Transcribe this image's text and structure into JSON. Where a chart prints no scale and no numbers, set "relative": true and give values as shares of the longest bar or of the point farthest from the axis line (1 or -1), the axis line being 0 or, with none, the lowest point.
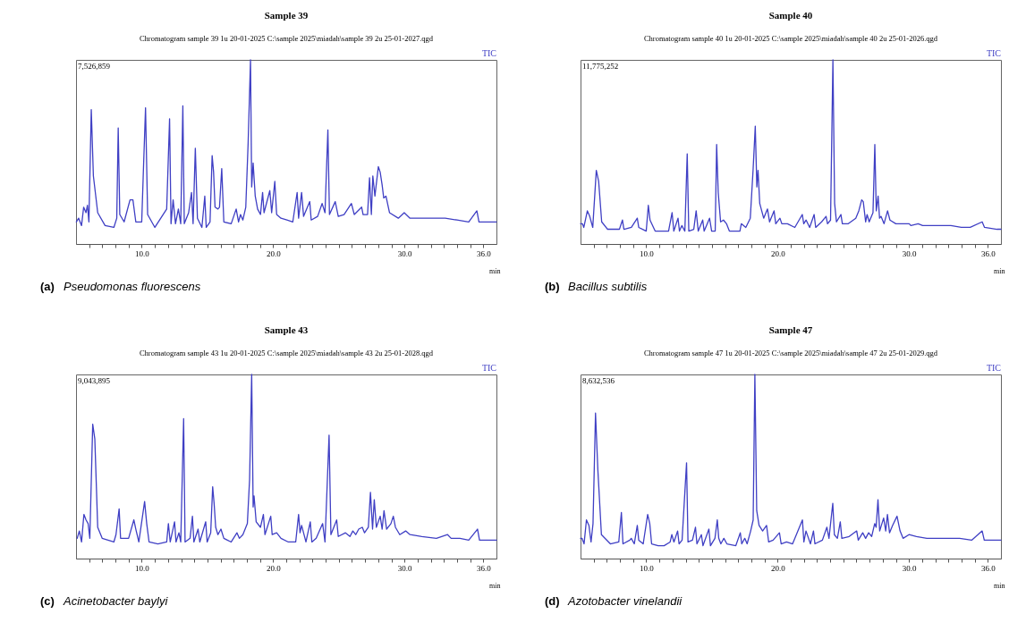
{
  "chart_data": [
    {
      "type": "line",
      "title": "Sample 39",
      "subtitle": "Chromatogram sample 39 1u 20-01-2025 C:\\sample 2025\\miadah\\sample 39 2u 25-01-2027.qgd",
      "xlabel": "min",
      "relative": true,
      "xlim": [
        5,
        37
      ],
      "xticks": [
        {
          "value": 6,
          "label": null
        },
        {
          "value": 7,
          "label": null
        },
        {
          "value": 8,
          "label": null
        },
        {
          "value": 9,
          "label": null
        },
        {
          "value": 10,
          "label": "10.0"
        },
        {
          "value": 11,
          "label": null
        },
        {
          "value": 12,
          "label": null
        },
        {
          "value": 13,
          "label": null
        },
        {
          "value": 14,
          "label": null
        },
        {
          "value": 15,
          "label": null
        },
        {
          "value": 16,
          "label": null
        },
        {
          "value": 17,
          "label": null
        },
        {
          "value": 18,
          "label": null
        },
        {
          "value": 19,
          "label": null
        },
        {
          "value": 20,
          "label": "20.0"
        },
        {
          "value": 21,
          "label": null
        },
        {
          "value": 22,
          "label": null
        },
        {
          "value": 23,
          "label": null
        },
        {
          "value": 24,
          "label": null
        },
        {
          "value": 25,
          "label": null
        },
        {
          "value": 26,
          "label": null
        },
        {
          "value": 27,
          "label": null
        },
        {
          "value": 28,
          "label": null
        },
        {
          "value": 29,
          "label": null
        },
        {
          "value": 30,
          "label": "30.0"
        },
        {
          "value": 31,
          "label": null
        },
        {
          "value": 32,
          "label": null
        },
        {
          "value": 33,
          "label": null
        },
        {
          "value": 34,
          "label": null
        },
        {
          "value": 35,
          "label": null
        },
        {
          "value": 36,
          "label": "36.0"
        }
      ],
      "annotations": [
        "7,526,859",
        "(a) Pseudomonas fluorescens"
      ],
      "series": [
        {
          "name": "TIC",
          "color": "#3f3fc4",
          "x": [
            5.02,
            5.2,
            5.42,
            5.58,
            5.76,
            5.87,
            5.98,
            6.16,
            6.32,
            6.65,
            7.21,
            7.88,
            8.1,
            8.21,
            8.33,
            8.66,
            9.11,
            9.33,
            9.55,
            10.0,
            10.11,
            10.29,
            10.45,
            11.0,
            11.9,
            12.12,
            12.23,
            12.39,
            12.57,
            12.79,
            12.97,
            13.13,
            13.24,
            13.57,
            13.79,
            13.91,
            14.08,
            14.24,
            14.58,
            14.8,
            14.91,
            15.2,
            15.36,
            15.47,
            15.58,
            15.8,
            15.92,
            16.09,
            16.25,
            16.81,
            17.19,
            17.37,
            17.52,
            17.7,
            17.92,
            18.1,
            18.28,
            18.37,
            18.48,
            18.64,
            18.82,
            19.04,
            19.2,
            19.31,
            19.75,
            19.89,
            20.13,
            20.27,
            20.6,
            21.05,
            21.5,
            21.83,
            21.94,
            22.17,
            22.32,
            22.79,
            22.9,
            23.39,
            23.73,
            23.95,
            24.17,
            24.29,
            24.73,
            24.96,
            25.4,
            25.96,
            26.18,
            26.74,
            26.85,
            27.19,
            27.34,
            27.48,
            27.59,
            27.75,
            28.01,
            28.15,
            28.3,
            28.42,
            28.59,
            28.86,
            29.53,
            29.98,
            30.42,
            31.32,
            32.43,
            33.1,
            34.0,
            34.89,
            35.51,
            35.67,
            37.0
          ],
          "values": [
            0.12,
            0.14,
            0.1,
            0.2,
            0.17,
            0.21,
            0.12,
            0.73,
            0.37,
            0.17,
            0.1,
            0.09,
            0.14,
            0.63,
            0.16,
            0.12,
            0.24,
            0.24,
            0.12,
            0.12,
            0.36,
            0.74,
            0.16,
            0.09,
            0.19,
            0.68,
            0.11,
            0.24,
            0.11,
            0.19,
            0.11,
            0.75,
            0.11,
            0.17,
            0.28,
            0.11,
            0.52,
            0.14,
            0.09,
            0.26,
            0.09,
            0.12,
            0.48,
            0.39,
            0.2,
            0.19,
            0.2,
            0.41,
            0.12,
            0.11,
            0.19,
            0.12,
            0.16,
            0.13,
            0.2,
            0.55,
            1.0,
            0.31,
            0.44,
            0.26,
            0.19,
            0.16,
            0.28,
            0.17,
            0.29,
            0.17,
            0.34,
            0.16,
            0.14,
            0.13,
            0.12,
            0.28,
            0.14,
            0.28,
            0.15,
            0.23,
            0.13,
            0.15,
            0.22,
            0.17,
            0.62,
            0.16,
            0.23,
            0.15,
            0.16,
            0.22,
            0.16,
            0.2,
            0.16,
            0.16,
            0.36,
            0.16,
            0.37,
            0.26,
            0.42,
            0.39,
            0.32,
            0.25,
            0.26,
            0.17,
            0.14,
            0.17,
            0.14,
            0.14,
            0.14,
            0.14,
            0.13,
            0.12,
            0.18,
            0.12,
            0.12
          ]
        }
      ]
    },
    {
      "type": "line",
      "title": "Sample 40",
      "subtitle": "Chromatogram sample 40 1u 20-01-2025 C:\\sample 2025\\miadah\\sample 40  2u 25-01-2026.qgd",
      "xlabel": "min",
      "relative": true,
      "xlim": [
        5,
        37
      ],
      "xticks": [
        {
          "value": 6,
          "label": null
        },
        {
          "value": 7,
          "label": null
        },
        {
          "value": 8,
          "label": null
        },
        {
          "value": 9,
          "label": null
        },
        {
          "value": 10,
          "label": "10.0"
        },
        {
          "value": 11,
          "label": null
        },
        {
          "value": 12,
          "label": null
        },
        {
          "value": 13,
          "label": null
        },
        {
          "value": 14,
          "label": null
        },
        {
          "value": 15,
          "label": null
        },
        {
          "value": 16,
          "label": null
        },
        {
          "value": 17,
          "label": null
        },
        {
          "value": 18,
          "label": null
        },
        {
          "value": 19,
          "label": null
        },
        {
          "value": 20,
          "label": "20.0"
        },
        {
          "value": 21,
          "label": null
        },
        {
          "value": 22,
          "label": null
        },
        {
          "value": 23,
          "label": null
        },
        {
          "value": 24,
          "label": null
        },
        {
          "value": 25,
          "label": null
        },
        {
          "value": 26,
          "label": null
        },
        {
          "value": 27,
          "label": null
        },
        {
          "value": 28,
          "label": null
        },
        {
          "value": 29,
          "label": null
        },
        {
          "value": 30,
          "label": "30.0"
        },
        {
          "value": 31,
          "label": null
        },
        {
          "value": 32,
          "label": null
        },
        {
          "value": 33,
          "label": null
        },
        {
          "value": 34,
          "label": null
        },
        {
          "value": 35,
          "label": null
        },
        {
          "value": 36,
          "label": "36.0"
        }
      ],
      "annotations": [
        "11,775,252",
        "(b) Bacillus subtilis"
      ],
      "series": [
        {
          "name": "TIC",
          "color": "#3f3fc4",
          "x": [
            5.0,
            5.14,
            5.25,
            5.52,
            5.7,
            5.93,
            6.2,
            6.38,
            6.61,
            7.06,
            7.96,
            8.19,
            8.3,
            8.87,
            9.32,
            9.43,
            10.0,
            10.16,
            10.29,
            10.68,
            11.36,
            11.7,
            11.97,
            12.1,
            12.42,
            12.53,
            12.71,
            12.94,
            13.12,
            13.24,
            13.62,
            13.8,
            13.96,
            14.3,
            14.41,
            14.82,
            14.98,
            15.25,
            15.36,
            15.48,
            15.66,
            15.88,
            16.11,
            16.33,
            17.13,
            17.24,
            17.58,
            17.92,
            18.14,
            18.3,
            18.42,
            18.51,
            18.64,
            18.94,
            19.23,
            19.39,
            19.73,
            19.86,
            20.18,
            20.32,
            20.75,
            21.31,
            21.88,
            21.99,
            22.17,
            22.44,
            22.78,
            22.9,
            23.35,
            23.69,
            23.8,
            24.03,
            24.21,
            24.34,
            24.48,
            24.82,
            24.93,
            25.38,
            25.95,
            26.18,
            26.4,
            26.52,
            26.7,
            26.81,
            26.97,
            27.26,
            27.4,
            27.51,
            27.65,
            27.76,
            27.87,
            28.1,
            28.37,
            28.55,
            29.0,
            29.46,
            30.02,
            30.14,
            30.7,
            31.04,
            32.06,
            32.62,
            33.19,
            33.98,
            34.66,
            35.57,
            35.75,
            36.7,
            37.0
          ],
          "values": [
            0.11,
            0.11,
            0.09,
            0.18,
            0.15,
            0.09,
            0.4,
            0.34,
            0.12,
            0.08,
            0.08,
            0.13,
            0.08,
            0.09,
            0.14,
            0.09,
            0.07,
            0.21,
            0.13,
            0.07,
            0.07,
            0.07,
            0.17,
            0.07,
            0.14,
            0.07,
            0.1,
            0.07,
            0.49,
            0.07,
            0.08,
            0.18,
            0.07,
            0.13,
            0.07,
            0.14,
            0.07,
            0.07,
            0.54,
            0.28,
            0.12,
            0.13,
            0.11,
            0.07,
            0.07,
            0.11,
            0.09,
            0.14,
            0.41,
            0.64,
            0.31,
            0.4,
            0.22,
            0.14,
            0.19,
            0.12,
            0.18,
            0.11,
            0.14,
            0.11,
            0.11,
            0.09,
            0.16,
            0.11,
            0.13,
            0.09,
            0.16,
            0.09,
            0.12,
            0.15,
            0.11,
            0.13,
            1.0,
            0.22,
            0.12,
            0.16,
            0.11,
            0.11,
            0.14,
            0.18,
            0.24,
            0.23,
            0.12,
            0.16,
            0.12,
            0.17,
            0.54,
            0.18,
            0.26,
            0.14,
            0.15,
            0.11,
            0.18,
            0.13,
            0.11,
            0.11,
            0.11,
            0.1,
            0.11,
            0.1,
            0.1,
            0.1,
            0.1,
            0.09,
            0.09,
            0.12,
            0.09,
            0.08,
            0.08
          ]
        }
      ]
    },
    {
      "type": "line",
      "title": "Sample 43",
      "subtitle": "Chromatogram sample 43 1u 20-01-2025 C:\\sample 2025\\miadah\\sample 43 2u 25-01-2028.qgd",
      "xlabel": "min",
      "relative": true,
      "xlim": [
        5,
        37
      ],
      "xticks": [
        {
          "value": 6,
          "label": null
        },
        {
          "value": 7,
          "label": null
        },
        {
          "value": 8,
          "label": null
        },
        {
          "value": 9,
          "label": null
        },
        {
          "value": 10,
          "label": "10.0"
        },
        {
          "value": 11,
          "label": null
        },
        {
          "value": 12,
          "label": null
        },
        {
          "value": 13,
          "label": null
        },
        {
          "value": 14,
          "label": null
        },
        {
          "value": 15,
          "label": null
        },
        {
          "value": 16,
          "label": null
        },
        {
          "value": 17,
          "label": null
        },
        {
          "value": 18,
          "label": null
        },
        {
          "value": 19,
          "label": null
        },
        {
          "value": 20,
          "label": "20.0"
        },
        {
          "value": 21,
          "label": null
        },
        {
          "value": 22,
          "label": null
        },
        {
          "value": 23,
          "label": null
        },
        {
          "value": 24,
          "label": null
        },
        {
          "value": 25,
          "label": null
        },
        {
          "value": 26,
          "label": null
        },
        {
          "value": 27,
          "label": null
        },
        {
          "value": 28,
          "label": null
        },
        {
          "value": 29,
          "label": null
        },
        {
          "value": 30,
          "label": "30.0"
        },
        {
          "value": 31,
          "label": null
        },
        {
          "value": 32,
          "label": null
        },
        {
          "value": 33,
          "label": null
        },
        {
          "value": 34,
          "label": null
        },
        {
          "value": 35,
          "label": null
        },
        {
          "value": 36,
          "label": "36.0"
        }
      ],
      "annotations": [
        "9,043,895",
        "(c) Acinetobacter baylyi"
      ],
      "series": [
        {
          "name": "TIC",
          "color": "#3f3fc4",
          "x": [
            5.09,
            5.25,
            5.42,
            5.6,
            5.76,
            5.92,
            6.05,
            6.27,
            6.43,
            6.65,
            6.99,
            7.88,
            8.04,
            8.28,
            8.39,
            9.0,
            9.4,
            9.55,
            9.78,
            10.22,
            10.38,
            10.56,
            11.23,
            11.9,
            12.03,
            12.17,
            12.5,
            12.61,
            12.83,
            12.97,
            13.19,
            13.3,
            13.68,
            13.86,
            13.97,
            14.29,
            14.42,
            14.87,
            14.98,
            15.25,
            15.4,
            15.51,
            15.63,
            15.8,
            16.03,
            16.25,
            16.81,
            17.25,
            17.43,
            17.7,
            18.04,
            18.21,
            18.37,
            18.48,
            18.55,
            18.71,
            19.04,
            19.26,
            19.38,
            19.82,
            19.93,
            20.27,
            20.6,
            21.16,
            21.72,
            21.94,
            22.05,
            22.17,
            22.5,
            22.83,
            22.95,
            23.28,
            23.77,
            23.95,
            24.26,
            24.4,
            24.84,
            24.96,
            25.51,
            25.85,
            26.07,
            26.29,
            26.52,
            26.79,
            26.96,
            27.25,
            27.41,
            27.57,
            27.7,
            27.86,
            28.15,
            28.3,
            28.44,
            28.64,
            28.97,
            29.15,
            29.31,
            29.64,
            30.09,
            30.42,
            31.32,
            32.43,
            33.28,
            33.55,
            34.22,
            34.89,
            35.56,
            35.71,
            37.0
          ],
          "values": [
            0.11,
            0.15,
            0.09,
            0.24,
            0.21,
            0.19,
            0.11,
            0.73,
            0.65,
            0.17,
            0.11,
            0.09,
            0.13,
            0.27,
            0.11,
            0.11,
            0.21,
            0.16,
            0.09,
            0.31,
            0.19,
            0.09,
            0.08,
            0.09,
            0.19,
            0.09,
            0.2,
            0.09,
            0.14,
            0.09,
            0.76,
            0.09,
            0.11,
            0.23,
            0.09,
            0.16,
            0.09,
            0.2,
            0.09,
            0.14,
            0.39,
            0.3,
            0.17,
            0.13,
            0.16,
            0.11,
            0.09,
            0.14,
            0.11,
            0.13,
            0.19,
            0.43,
            1.0,
            0.28,
            0.34,
            0.2,
            0.17,
            0.24,
            0.13,
            0.23,
            0.13,
            0.14,
            0.11,
            0.09,
            0.09,
            0.24,
            0.14,
            0.18,
            0.09,
            0.2,
            0.09,
            0.11,
            0.19,
            0.09,
            0.67,
            0.13,
            0.21,
            0.12,
            0.14,
            0.12,
            0.15,
            0.13,
            0.16,
            0.17,
            0.14,
            0.17,
            0.36,
            0.16,
            0.32,
            0.17,
            0.23,
            0.16,
            0.26,
            0.16,
            0.19,
            0.23,
            0.17,
            0.13,
            0.15,
            0.13,
            0.12,
            0.11,
            0.13,
            0.11,
            0.11,
            0.1,
            0.16,
            0.1,
            0.1
          ]
        }
      ]
    },
    {
      "type": "line",
      "title": "Sample 47",
      "subtitle": "Chromatogram sample 47 1u 20-01-2025 C:\\sample 2025\\miadah\\sample 47 2u 25-01-2029.qgd",
      "xlabel": "min",
      "relative": true,
      "xlim": [
        5,
        37
      ],
      "xticks": [
        {
          "value": 6,
          "label": null
        },
        {
          "value": 7,
          "label": null
        },
        {
          "value": 8,
          "label": null
        },
        {
          "value": 9,
          "label": null
        },
        {
          "value": 10,
          "label": "10.0"
        },
        {
          "value": 11,
          "label": null
        },
        {
          "value": 12,
          "label": null
        },
        {
          "value": 13,
          "label": null
        },
        {
          "value": 14,
          "label": null
        },
        {
          "value": 15,
          "label": null
        },
        {
          "value": 16,
          "label": null
        },
        {
          "value": 17,
          "label": null
        },
        {
          "value": 18,
          "label": null
        },
        {
          "value": 19,
          "label": null
        },
        {
          "value": 20,
          "label": "20.0"
        },
        {
          "value": 21,
          "label": null
        },
        {
          "value": 22,
          "label": null
        },
        {
          "value": 23,
          "label": null
        },
        {
          "value": 24,
          "label": null
        },
        {
          "value": 25,
          "label": null
        },
        {
          "value": 26,
          "label": null
        },
        {
          "value": 27,
          "label": null
        },
        {
          "value": 28,
          "label": null
        },
        {
          "value": 29,
          "label": null
        },
        {
          "value": 30,
          "label": "30.0"
        },
        {
          "value": 31,
          "label": null
        },
        {
          "value": 32,
          "label": null
        },
        {
          "value": 33,
          "label": null
        },
        {
          "value": 34,
          "label": null
        },
        {
          "value": 35,
          "label": null
        },
        {
          "value": 36,
          "label": "36.0"
        }
      ],
      "annotations": [
        "8,632,536",
        "(d) Azotobacter vinelandii"
      ],
      "series": [
        {
          "name": "TIC",
          "color": "#3f3fc4",
          "x": [
            5.0,
            5.11,
            5.27,
            5.45,
            5.64,
            5.8,
            5.95,
            6.14,
            6.32,
            6.59,
            7.27,
            7.91,
            8.11,
            8.23,
            8.75,
            8.86,
            9.09,
            9.32,
            9.43,
            9.77,
            10.11,
            10.27,
            10.41,
            10.91,
            11.36,
            11.82,
            11.95,
            12.11,
            12.39,
            12.5,
            12.73,
            13.07,
            13.18,
            13.52,
            13.75,
            13.86,
            14.2,
            14.32,
            14.77,
            14.89,
            15.23,
            15.41,
            15.52,
            15.68,
            15.91,
            16.14,
            16.82,
            17.16,
            17.27,
            17.5,
            17.68,
            17.95,
            18.14,
            18.27,
            18.41,
            18.59,
            18.86,
            19.16,
            19.32,
            19.66,
            20.14,
            20.27,
            20.68,
            21.14,
            21.89,
            22.0,
            22.16,
            22.5,
            22.73,
            22.84,
            23.41,
            23.75,
            23.91,
            24.2,
            24.32,
            24.55,
            24.77,
            24.89,
            25.45,
            26.02,
            26.14,
            26.48,
            26.7,
            26.93,
            27.16,
            27.39,
            27.5,
            27.64,
            27.77,
            28.07,
            28.23,
            28.36,
            28.52,
            28.75,
            29.09,
            29.32,
            29.55,
            30.0,
            30.57,
            31.36,
            32.05,
            32.61,
            33.18,
            33.86,
            34.77,
            35.57,
            35.73,
            36.77,
            37.0
          ],
          "values": [
            0.11,
            0.11,
            0.08,
            0.21,
            0.18,
            0.09,
            0.19,
            0.79,
            0.48,
            0.13,
            0.08,
            0.09,
            0.25,
            0.08,
            0.1,
            0.11,
            0.08,
            0.18,
            0.1,
            0.08,
            0.24,
            0.19,
            0.08,
            0.07,
            0.07,
            0.09,
            0.13,
            0.09,
            0.15,
            0.08,
            0.1,
            0.52,
            0.09,
            0.1,
            0.17,
            0.08,
            0.13,
            0.07,
            0.16,
            0.07,
            0.11,
            0.21,
            0.11,
            0.08,
            0.11,
            0.08,
            0.07,
            0.14,
            0.08,
            0.11,
            0.08,
            0.15,
            0.21,
            1.0,
            0.26,
            0.18,
            0.15,
            0.18,
            0.09,
            0.1,
            0.14,
            0.08,
            0.09,
            0.08,
            0.21,
            0.09,
            0.15,
            0.08,
            0.15,
            0.08,
            0.1,
            0.17,
            0.11,
            0.3,
            0.13,
            0.11,
            0.2,
            0.11,
            0.12,
            0.15,
            0.1,
            0.14,
            0.11,
            0.14,
            0.12,
            0.19,
            0.17,
            0.32,
            0.15,
            0.22,
            0.15,
            0.24,
            0.14,
            0.18,
            0.23,
            0.15,
            0.11,
            0.13,
            0.12,
            0.11,
            0.11,
            0.11,
            0.11,
            0.11,
            0.1,
            0.15,
            0.1,
            0.1,
            0.1
          ]
        }
      ]
    }
  ]
}
